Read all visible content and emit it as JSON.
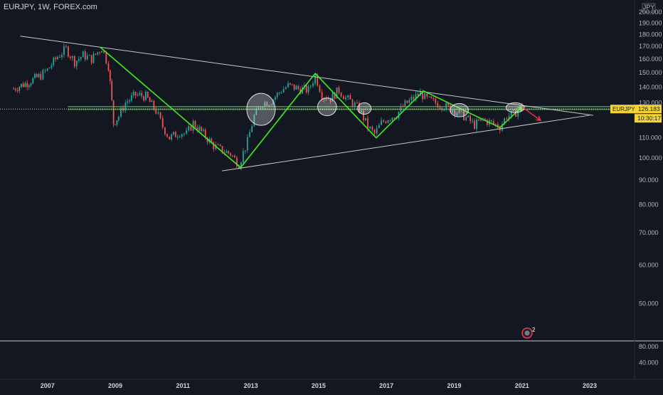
{
  "header": {
    "symbol_line": "EURJPY, 1W, FOREX.com"
  },
  "currency_label": "JPY",
  "price_badge": {
    "symbol": "EURJPY",
    "value": "126.183",
    "countdown": "10:30:17",
    "color": "#f5d431"
  },
  "colors": {
    "background": "#131722",
    "up": "#26a69a",
    "down": "#ef5350",
    "zigzag": "#3ded1e",
    "trendline": "#c8c8c8",
    "support_band": "#4caf50",
    "projection_arrow": "#f23645"
  },
  "indicator_icon": {
    "name": "alert-clock-icon",
    "badge": "2"
  },
  "chart_data": {
    "type": "candlestick",
    "title": "EURJPY, 1W, FOREX.com",
    "ylabel": "JPY",
    "y_scale": "log",
    "ylim": [
      42,
      212
    ],
    "y_ticks": [
      "200.000",
      "190.000",
      "180.000",
      "170.000",
      "160.000",
      "150.000",
      "140.000",
      "130.000",
      "120.000",
      "110.000",
      "100.000",
      "90.000",
      "80.000",
      "70.000",
      "60.000",
      "50.000"
    ],
    "x_ticks": [
      "2007",
      "2009",
      "2011",
      "2013",
      "2015",
      "2017",
      "2019",
      "2021",
      "2023"
    ],
    "xlim": [
      2005.6,
      2024.3
    ],
    "close_path": [
      [
        2006.0,
        139
      ],
      [
        2006.4,
        143
      ],
      [
        2006.8,
        148
      ],
      [
        2007.0,
        152
      ],
      [
        2007.3,
        162
      ],
      [
        2007.55,
        168
      ],
      [
        2007.8,
        158
      ],
      [
        2008.05,
        163
      ],
      [
        2008.3,
        160
      ],
      [
        2008.6,
        169
      ],
      [
        2008.8,
        155
      ],
      [
        2008.95,
        118
      ],
      [
        2009.1,
        122
      ],
      [
        2009.3,
        130
      ],
      [
        2009.6,
        135
      ],
      [
        2009.9,
        134
      ],
      [
        2010.2,
        125
      ],
      [
        2010.4,
        116
      ],
      [
        2010.6,
        110
      ],
      [
        2010.9,
        113
      ],
      [
        2011.1,
        112
      ],
      [
        2011.3,
        118
      ],
      [
        2011.6,
        112
      ],
      [
        2011.9,
        106
      ],
      [
        2012.1,
        104
      ],
      [
        2012.4,
        102
      ],
      [
        2012.65,
        97
      ],
      [
        2012.9,
        108
      ],
      [
        2013.1,
        122
      ],
      [
        2013.35,
        130
      ],
      [
        2013.6,
        131
      ],
      [
        2013.9,
        138
      ],
      [
        2014.1,
        141
      ],
      [
        2014.4,
        139
      ],
      [
        2014.7,
        138
      ],
      [
        2014.9,
        148
      ],
      [
        2015.1,
        135
      ],
      [
        2015.35,
        133
      ],
      [
        2015.6,
        138
      ],
      [
        2015.8,
        133
      ],
      [
        2016.0,
        130
      ],
      [
        2016.2,
        126
      ],
      [
        2016.45,
        116
      ],
      [
        2016.65,
        112
      ],
      [
        2016.85,
        118
      ],
      [
        2017.05,
        121
      ],
      [
        2017.3,
        123
      ],
      [
        2017.55,
        129
      ],
      [
        2017.8,
        133
      ],
      [
        2018.0,
        136
      ],
      [
        2018.2,
        132
      ],
      [
        2018.45,
        130
      ],
      [
        2018.7,
        128
      ],
      [
        2018.95,
        126
      ],
      [
        2019.15,
        124
      ],
      [
        2019.35,
        121
      ],
      [
        2019.6,
        117
      ],
      [
        2019.85,
        120
      ],
      [
        2020.1,
        118
      ],
      [
        2020.35,
        116
      ],
      [
        2020.55,
        122
      ],
      [
        2020.75,
        123
      ],
      [
        2020.95,
        127
      ],
      [
        2021.05,
        128
      ]
    ],
    "zigzag": [
      [
        2008.55,
        169.5
      ],
      [
        2012.7,
        95.5
      ],
      [
        2014.9,
        149.5
      ],
      [
        2016.7,
        110
      ],
      [
        2018.1,
        137.5
      ],
      [
        2020.35,
        115.5
      ],
      [
        2021.0,
        127.5
      ]
    ],
    "trendlines": [
      {
        "name": "upper",
        "points": [
          [
            2006.2,
            178.5
          ],
          [
            2023.1,
            122.5
          ]
        ]
      },
      {
        "name": "lower",
        "points": [
          [
            2012.15,
            94
          ],
          [
            2023.0,
            122.5
          ]
        ]
      }
    ],
    "support_band": [
      125.9,
      127.7
    ],
    "current_price": 126.183,
    "projection": [
      [
        2021.0,
        127.5
      ],
      [
        2021.55,
        119.5
      ]
    ],
    "highlights": [
      {
        "x": 2013.3,
        "y": 126,
        "rx": 0.42,
        "ry": 10
      },
      {
        "x": 2015.25,
        "y": 127.5,
        "rx": 0.28,
        "ry": 5.5
      },
      {
        "x": 2016.35,
        "y": 126.5,
        "rx": 0.2,
        "ry": 3.5
      },
      {
        "x": 2019.15,
        "y": 125.5,
        "rx": 0.27,
        "ry": 4
      },
      {
        "x": 2020.8,
        "y": 127,
        "rx": 0.27,
        "ry": 3
      }
    ],
    "sub_pane": {
      "y_ticks": [
        "80.000",
        "40.000"
      ],
      "ylim": [
        0,
        92
      ]
    },
    "grid": false,
    "legend": "none"
  }
}
